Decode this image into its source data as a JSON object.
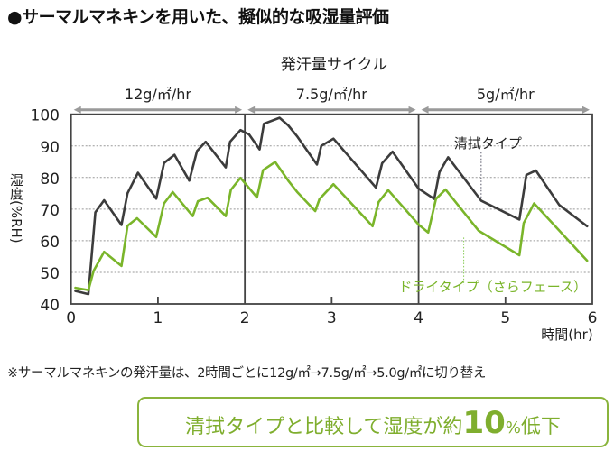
{
  "header": {
    "title": "●サーマルマネキンを用いた、擬似的な吸湿量評価"
  },
  "chart_data": {
    "type": "line",
    "title": "発汗量サイクル",
    "xlabel": "時間(hr)",
    "ylabel": "湿度(%RH)",
    "xlim": [
      0,
      6
    ],
    "ylim": [
      40,
      100
    ],
    "x_ticks": [
      "0",
      "1",
      "2",
      "3",
      "4",
      "5",
      "6"
    ],
    "y_ticks": [
      "40",
      "50",
      "60",
      "70",
      "80",
      "90",
      "100"
    ],
    "grid": "horizontal dotted",
    "phases": [
      {
        "label": "12g/㎡/hr",
        "start": 0,
        "end": 2
      },
      {
        "label": "7.5g/㎡/hr",
        "start": 2,
        "end": 4
      },
      {
        "label": "5g/㎡/hr",
        "start": 4,
        "end": 6
      }
    ],
    "series": [
      {
        "name": "清拭タイプ",
        "color": "#3c3c3c",
        "points": [
          [
            0.05,
            44.1
          ],
          [
            0.2,
            43.1
          ],
          [
            0.28,
            69
          ],
          [
            0.38,
            72.8
          ],
          [
            0.58,
            65
          ],
          [
            0.65,
            75
          ],
          [
            0.77,
            81.5
          ],
          [
            0.98,
            73.3
          ],
          [
            1.07,
            84.6
          ],
          [
            1.19,
            87.2
          ],
          [
            1.36,
            79
          ],
          [
            1.45,
            88.4
          ],
          [
            1.55,
            91.3
          ],
          [
            1.78,
            83.2
          ],
          [
            1.83,
            91.3
          ],
          [
            1.95,
            95
          ],
          [
            2.05,
            93.6
          ],
          [
            2.17,
            88.9
          ],
          [
            2.22,
            97
          ],
          [
            2.4,
            98.9
          ],
          [
            2.5,
            96.5
          ],
          [
            2.6,
            93.1
          ],
          [
            2.83,
            84.1
          ],
          [
            2.88,
            90
          ],
          [
            3.02,
            92.3
          ],
          [
            3.51,
            76.8
          ],
          [
            3.58,
            84.5
          ],
          [
            3.7,
            88.2
          ],
          [
            4.0,
            76.5
          ],
          [
            4.18,
            73.2
          ],
          [
            4.24,
            81.7
          ],
          [
            4.34,
            86.4
          ],
          [
            4.72,
            72.7
          ],
          [
            5.16,
            66.7
          ],
          [
            5.24,
            80.8
          ],
          [
            5.35,
            82.2
          ],
          [
            5.62,
            71.3
          ],
          [
            5.94,
            64.6
          ]
        ]
      },
      {
        "name": "ドライタイプ(さらフェース)",
        "color": "#7ab52a",
        "points": [
          [
            0.05,
            45.1
          ],
          [
            0.2,
            44.4
          ],
          [
            0.26,
            50.5
          ],
          [
            0.38,
            56.5
          ],
          [
            0.58,
            52
          ],
          [
            0.65,
            64.7
          ],
          [
            0.76,
            67.1
          ],
          [
            0.98,
            61.2
          ],
          [
            1.07,
            71.8
          ],
          [
            1.17,
            75.4
          ],
          [
            1.4,
            67.8
          ],
          [
            1.46,
            72.5
          ],
          [
            1.57,
            73.6
          ],
          [
            1.78,
            67.8
          ],
          [
            1.84,
            76.1
          ],
          [
            1.95,
            79.9
          ],
          [
            2.14,
            73.7
          ],
          [
            2.21,
            82.3
          ],
          [
            2.35,
            84.9
          ],
          [
            2.5,
            79
          ],
          [
            2.6,
            75.5
          ],
          [
            2.81,
            69.4
          ],
          [
            2.86,
            73.2
          ],
          [
            3.02,
            77.9
          ],
          [
            3.47,
            64.6
          ],
          [
            3.54,
            72.2
          ],
          [
            3.65,
            76
          ],
          [
            4.0,
            65.1
          ],
          [
            4.11,
            62.6
          ],
          [
            4.2,
            73.2
          ],
          [
            4.31,
            76.2
          ],
          [
            4.69,
            63.2
          ],
          [
            5.16,
            55.4
          ],
          [
            5.21,
            65.6
          ],
          [
            5.33,
            71.8
          ],
          [
            5.94,
            53.7
          ]
        ]
      }
    ],
    "annotations": [
      {
        "text": "清拭タイプ",
        "x": 4.72,
        "y": 72.7
      },
      {
        "text": "ドライタイプ（さらフェース）",
        "x": 4.52,
        "y": 61
      }
    ]
  },
  "footnote": "※サーマルマネキンの発汗量は、2時間ごとに12g/㎡→7.5g/㎡→5.0g/㎡に切り替え",
  "callout": {
    "prefix": "清拭タイプと比較して湿度が約",
    "number": "10",
    "percent": "%",
    "suffix": "低下"
  }
}
